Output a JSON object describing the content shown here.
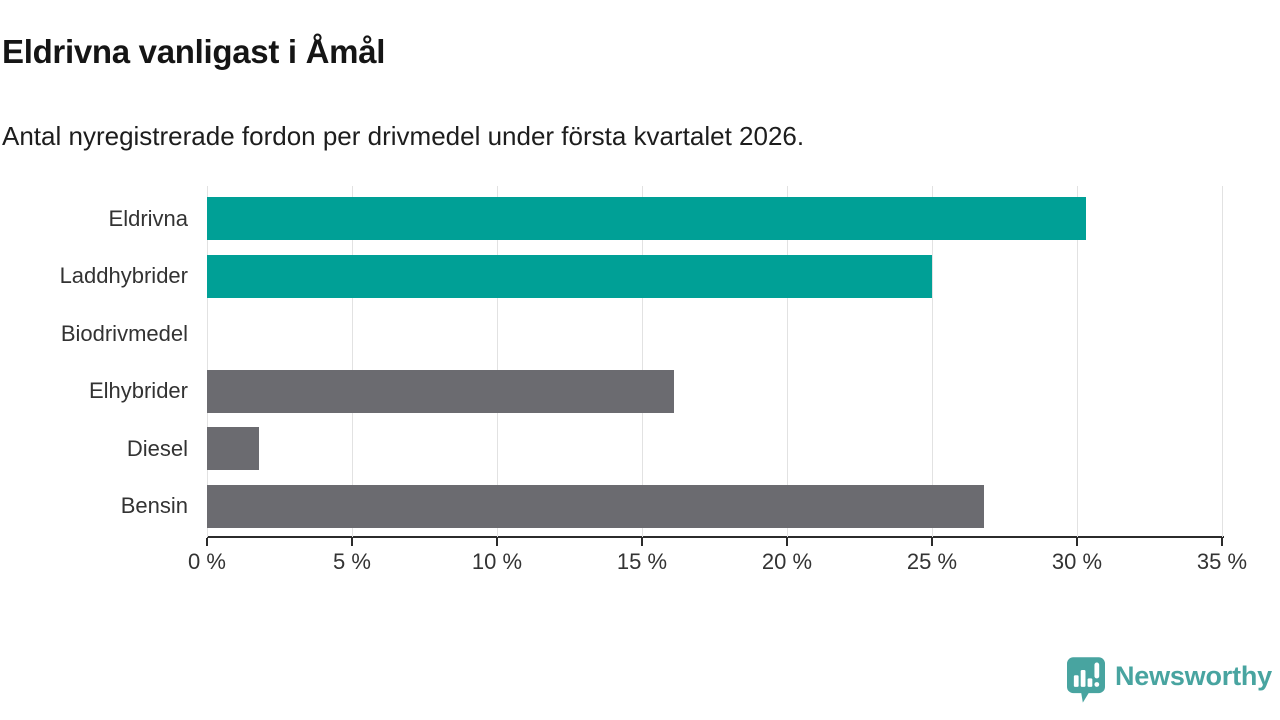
{
  "header": {
    "title": "Eldrivna vanligast i Åmål",
    "subtitle": "Antal nyregistrerade fordon per drivmedel under första kvartalet 2026."
  },
  "chart_data": {
    "type": "bar",
    "orientation": "horizontal",
    "title": "Eldrivna vanligast i Åmål",
    "subtitle": "Antal nyregistrerade fordon per drivmedel under första kvartalet 2026.",
    "categories": [
      "Eldrivna",
      "Laddhybrider",
      "Biodrivmedel",
      "Elhybrider",
      "Diesel",
      "Bensin"
    ],
    "values": [
      30.3,
      25.0,
      0,
      16.1,
      1.8,
      26.8
    ],
    "unit": "%",
    "bar_colors": [
      "#00A096",
      "#00A096",
      "#6B6B70",
      "#6B6B70",
      "#6B6B70",
      "#6B6B70"
    ],
    "highlight_color": "#00A096",
    "default_color": "#6B6B70",
    "xlim": [
      0,
      35
    ],
    "x_ticks": [
      0,
      5,
      10,
      15,
      20,
      25,
      30,
      35
    ],
    "x_tick_labels": [
      "0 %",
      "5 %",
      "10 %",
      "15 %",
      "20 %",
      "25 %",
      "30 %",
      "35 %"
    ],
    "grid": true,
    "gridline_color": "#e2e2e2",
    "axis_color": "#2b2b2b",
    "label_color": "#333333",
    "legend": "none"
  },
  "footer": {
    "brand": "Newsworthy",
    "brand_color": "#48A4A0",
    "brand_icon": "bar-chart-speech-bubble-icon"
  }
}
